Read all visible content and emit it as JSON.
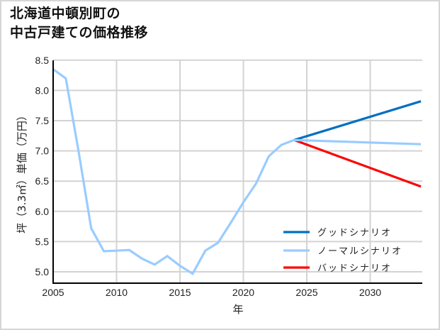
{
  "title": {
    "line1": "北海道中頓別町の",
    "line2": "中古戸建ての価格推移"
  },
  "colors": {
    "good": "#0070c0",
    "normal": "#99ccff",
    "bad": "#ff0000",
    "grid": "#d3d3d3",
    "axis": "#000000"
  },
  "chart_data": {
    "type": "line",
    "title": "北海道中頓別町の中古戸建ての価格推移",
    "xlabel": "年",
    "ylabel": "坪（3.3㎡）単価（万円）",
    "xlim": [
      2005,
      2034
    ],
    "ylim": [
      4.8,
      8.5
    ],
    "x_ticks": [
      2005,
      2010,
      2015,
      2020,
      2025,
      2030
    ],
    "y_ticks": [
      "5.0",
      "5.5",
      "6.0",
      "6.5",
      "7.0",
      "7.5",
      "8.0",
      "8.5"
    ],
    "grid": true,
    "legend_position": "lower right",
    "series": [
      {
        "name": "ノーマルシナリオ (実績)",
        "color": "#99ccff",
        "x": [
          2005,
          2006,
          2007,
          2008,
          2009,
          2010,
          2011,
          2012,
          2013,
          2014,
          2015,
          2016,
          2017,
          2018,
          2019,
          2020,
          2021,
          2022,
          2023,
          2024
        ],
        "values": [
          8.35,
          8.2,
          7.0,
          5.72,
          5.34,
          5.35,
          5.36,
          5.22,
          5.12,
          5.26,
          5.1,
          4.97,
          5.35,
          5.48,
          5.81,
          6.15,
          6.46,
          6.91,
          7.1,
          7.18
        ]
      },
      {
        "name": "グッドシナリオ",
        "color": "#0070c0",
        "x": [
          2024,
          2034
        ],
        "values": [
          7.18,
          7.82
        ]
      },
      {
        "name": "ノーマルシナリオ",
        "color": "#99ccff",
        "x": [
          2024,
          2034
        ],
        "values": [
          7.18,
          7.11
        ]
      },
      {
        "name": "バッドシナリオ",
        "color": "#ff0000",
        "x": [
          2024,
          2034
        ],
        "values": [
          7.18,
          6.41
        ]
      }
    ]
  },
  "legend": [
    {
      "label": "グッドシナリオ",
      "color": "#0070c0"
    },
    {
      "label": "ノーマルシナリオ",
      "color": "#99ccff"
    },
    {
      "label": "バッドシナリオ",
      "color": "#ff0000"
    }
  ],
  "axes": {
    "xlabel": "年",
    "ylabel": "坪（3.3㎡）単価（万円）",
    "x_ticks": [
      "2005",
      "2010",
      "2015",
      "2020",
      "2025",
      "2030"
    ],
    "y_ticks": [
      "5.0",
      "5.5",
      "6.0",
      "6.5",
      "7.0",
      "7.5",
      "8.0",
      "8.5"
    ]
  }
}
